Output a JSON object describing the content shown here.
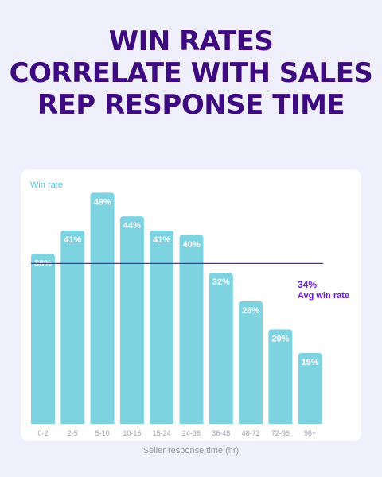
{
  "title_lines": [
    "WIN RATES",
    "CORRELATE WITH SALES",
    "REP RESPONSE TIME"
  ],
  "colors": {
    "background": "#eff0fb",
    "title": "#3e0a80",
    "bar": "#7dd3e0",
    "avg_line": "#6b21c8",
    "ylabel": "#4cc3d9",
    "tick": "#a0a0ad"
  },
  "chart_data": {
    "type": "bar",
    "title": "WIN RATES CORRELATE WITH SALES REP RESPONSE TIME",
    "ylabel": "Win rate",
    "xlabel": "Seller response time (hr)",
    "categories": [
      "0-2",
      "2-5",
      "5-10",
      "10-15",
      "15-24",
      "24-36",
      "36-48",
      "48-72",
      "72-96",
      "96+"
    ],
    "values": [
      36,
      41,
      49,
      44,
      41,
      40,
      32,
      26,
      20,
      15
    ],
    "data_labels": [
      "36%",
      "41%",
      "49%",
      "44%",
      "41%",
      "40%",
      "32%",
      "26%",
      "20%",
      "15%"
    ],
    "ylim": [
      0,
      50
    ],
    "grid": false,
    "reference_line": {
      "value": 34,
      "value_label": "34%",
      "label": "Avg win rate"
    }
  }
}
